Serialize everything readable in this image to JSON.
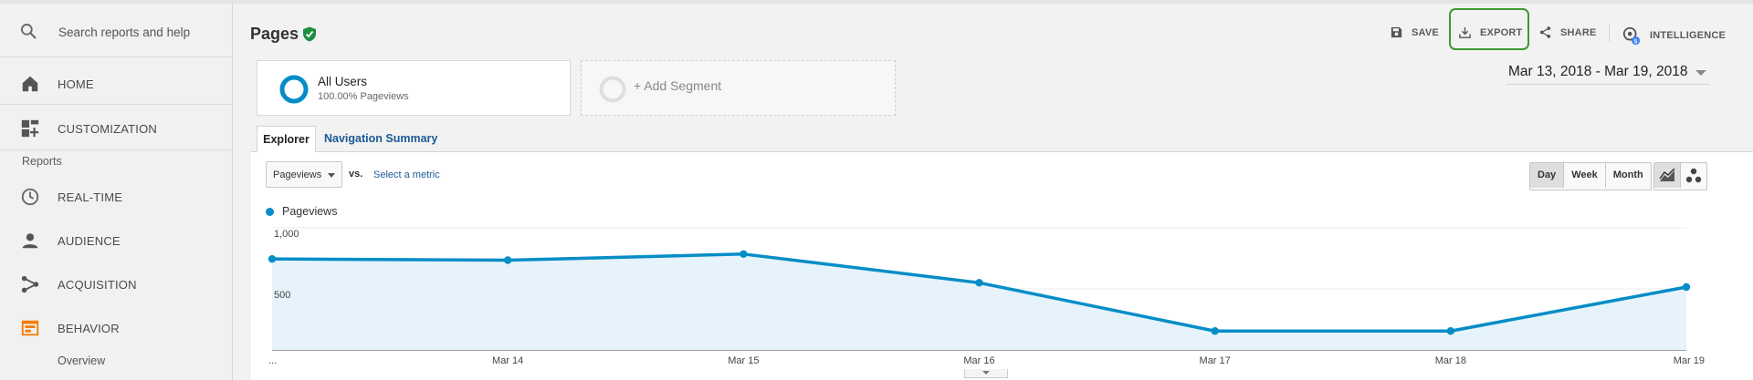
{
  "sidebar": {
    "search_placeholder": "Search reports and help",
    "home_label": "HOME",
    "customization_label": "CUSTOMIZATION",
    "reports_heading": "Reports",
    "items": [
      {
        "label": "REAL-TIME",
        "icon": "clock-icon"
      },
      {
        "label": "AUDIENCE",
        "icon": "person-icon"
      },
      {
        "label": "ACQUISITION",
        "icon": "acquisition-icon"
      },
      {
        "label": "BEHAVIOR",
        "icon": "behavior-icon",
        "active": true
      }
    ],
    "sub_items": [
      {
        "label": "Overview"
      }
    ],
    "accent_color": "#f57c00"
  },
  "header": {
    "title": "Pages",
    "save_label": "SAVE",
    "export_label": "EXPORT",
    "share_label": "SHARE",
    "intelligence_label": "INTELLIGENCE",
    "intelligence_badge": "5",
    "verified_color": "#1e8e3e",
    "highlight_color": "#3c9a2e"
  },
  "segments": {
    "all_users": {
      "name": "All Users",
      "sub": "100.00% Pageviews"
    },
    "add_label": "+ Add Segment"
  },
  "date_range": "Mar 13, 2018 - Mar 19, 2018",
  "tabs": [
    {
      "label": "Explorer",
      "active": true
    },
    {
      "label": "Navigation Summary",
      "active": false
    }
  ],
  "controls": {
    "metric_value": "Pageviews",
    "vs_label": "vs.",
    "select_metric_label": "Select a metric",
    "periods": [
      {
        "label": "Day",
        "active": true
      },
      {
        "label": "Week",
        "active": false
      },
      {
        "label": "Month",
        "active": false
      }
    ],
    "views": [
      {
        "icon": "line-chart-icon",
        "active": true
      },
      {
        "icon": "motion-chart-icon",
        "active": false
      }
    ]
  },
  "chart_data": {
    "type": "area",
    "series": [
      {
        "name": "Pageviews",
        "color": "#058dc7",
        "values": [
          745,
          735,
          785,
          550,
          155,
          155,
          515
        ]
      }
    ],
    "x_labels": [
      "...",
      "Mar 14",
      "Mar 15",
      "Mar 16",
      "Mar 17",
      "Mar 18",
      "Mar 19"
    ],
    "y_ticks": [
      {
        "value": 1000,
        "label": "1,000"
      },
      {
        "value": 500,
        "label": "500"
      }
    ],
    "ylim": [
      0,
      1000
    ],
    "grid": true,
    "legend": "top-left"
  }
}
